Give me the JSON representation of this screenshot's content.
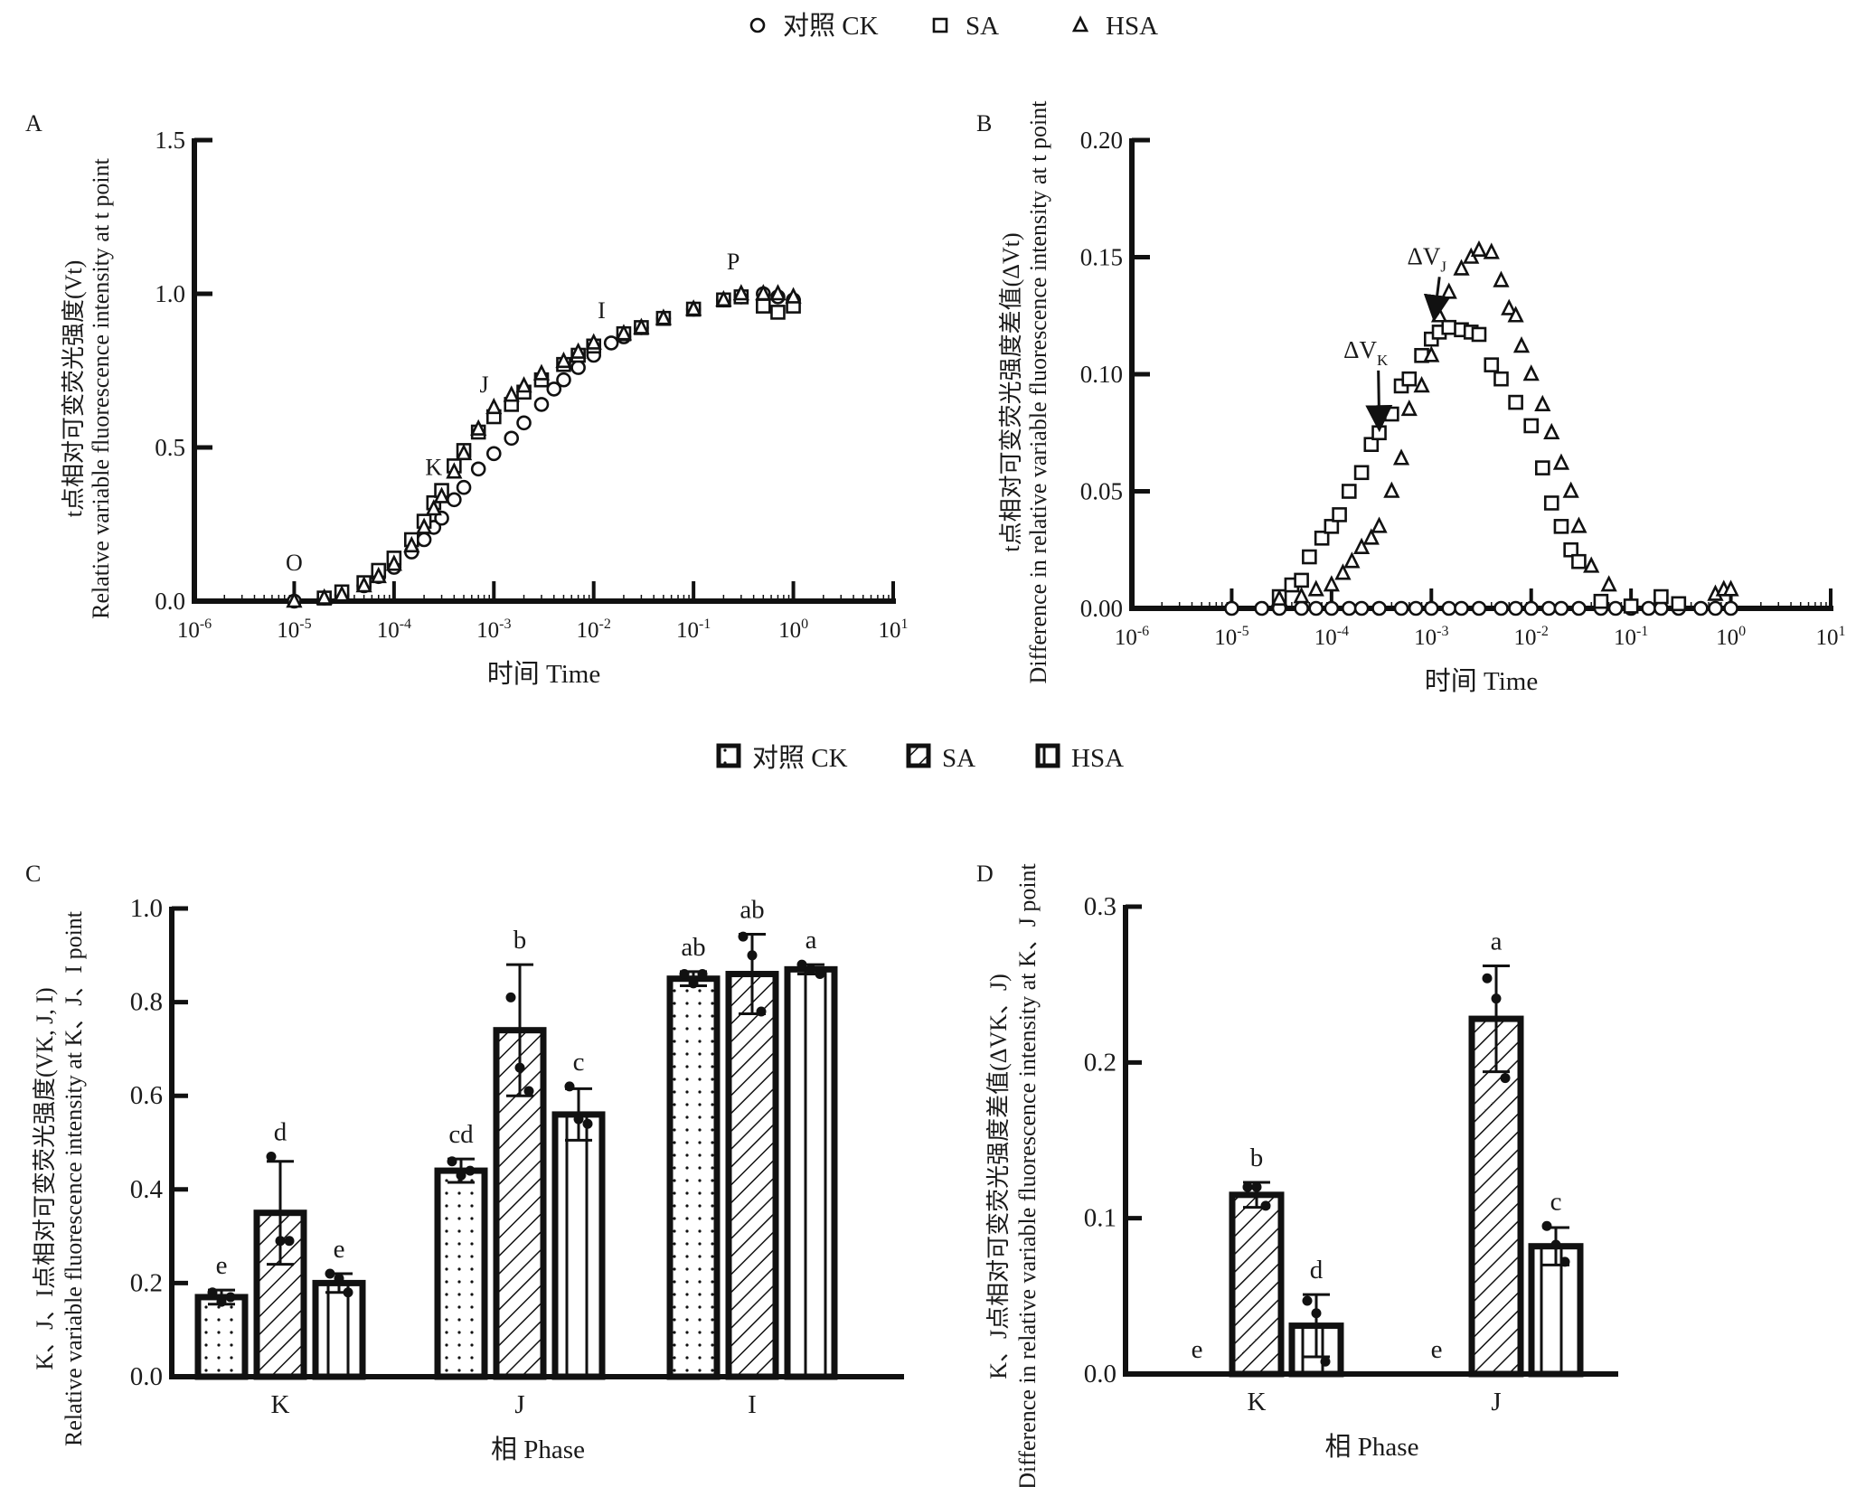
{
  "legend_scatter": [
    {
      "name": "对照 CK",
      "marker": "circle"
    },
    {
      "name": "SA",
      "marker": "square"
    },
    {
      "name": "HSA",
      "marker": "triangle"
    }
  ],
  "legend_bar": [
    {
      "name": "对照 CK",
      "pattern": "dots"
    },
    {
      "name": "SA",
      "pattern": "hatch"
    },
    {
      "name": "HSA",
      "pattern": "vlines"
    }
  ],
  "chart_data": [
    {
      "panel": "A",
      "type": "scatter",
      "title": "",
      "xlabel": "时间 Time",
      "ylabel_cn": "t点相对可变荧光强度(Vt)",
      "ylabel_en": "Relative variable fluorescence intensity at t point",
      "xscale": "log",
      "xlim": [
        1e-06,
        10
      ],
      "ylim": [
        0,
        1.5
      ],
      "xticks": [
        "10-6",
        "10-5",
        "10-4",
        "10-3",
        "10-2",
        "10-1",
        "100",
        "101"
      ],
      "yticks": [
        "0.0",
        "0.5",
        "1.0",
        "1.5"
      ],
      "annotations": [
        {
          "text": "O",
          "x": 1e-05,
          "y": 0.1
        },
        {
          "text": "K",
          "x": 0.00025,
          "y": 0.41
        },
        {
          "text": "J",
          "x": 0.0008,
          "y": 0.68
        },
        {
          "text": "I",
          "x": 0.012,
          "y": 0.92
        },
        {
          "text": "P",
          "x": 0.25,
          "y": 1.08
        }
      ],
      "series": [
        {
          "name": "对照 CK",
          "marker": "circle",
          "x": [
            1e-05,
            2e-05,
            3e-05,
            5e-05,
            7e-05,
            0.0001,
            0.00015,
            0.0002,
            0.00025,
            0.0003,
            0.0004,
            0.0005,
            0.0007,
            0.001,
            0.0015,
            0.002,
            0.003,
            0.004,
            0.005,
            0.007,
            0.01,
            0.015,
            0.02,
            0.03,
            0.05,
            0.1,
            0.2,
            0.3,
            0.5,
            0.7,
            1.0
          ],
          "y": [
            0.0,
            0.01,
            0.02,
            0.05,
            0.08,
            0.11,
            0.16,
            0.2,
            0.24,
            0.27,
            0.33,
            0.37,
            0.43,
            0.48,
            0.53,
            0.58,
            0.64,
            0.69,
            0.72,
            0.76,
            0.8,
            0.84,
            0.86,
            0.89,
            0.92,
            0.95,
            0.98,
            0.99,
            1.0,
            0.99,
            0.98
          ]
        },
        {
          "name": "SA",
          "marker": "square",
          "x": [
            2e-05,
            3e-05,
            5e-05,
            7e-05,
            0.0001,
            0.00015,
            0.0002,
            0.00025,
            0.0003,
            0.0004,
            0.0005,
            0.0007,
            0.001,
            0.0015,
            0.002,
            0.003,
            0.005,
            0.007,
            0.01,
            0.02,
            0.03,
            0.05,
            0.1,
            0.2,
            0.3,
            0.5,
            0.7,
            1.0
          ],
          "y": [
            0.01,
            0.03,
            0.06,
            0.1,
            0.14,
            0.2,
            0.26,
            0.32,
            0.36,
            0.44,
            0.49,
            0.55,
            0.6,
            0.64,
            0.68,
            0.72,
            0.77,
            0.8,
            0.83,
            0.87,
            0.89,
            0.92,
            0.95,
            0.98,
            0.99,
            0.96,
            0.94,
            0.96
          ]
        },
        {
          "name": "HSA",
          "marker": "triangle",
          "x": [
            1e-05,
            2e-05,
            3e-05,
            5e-05,
            7e-05,
            0.0001,
            0.00015,
            0.0002,
            0.00025,
            0.0003,
            0.0004,
            0.0005,
            0.0007,
            0.001,
            0.0015,
            0.002,
            0.003,
            0.005,
            0.007,
            0.01,
            0.02,
            0.03,
            0.05,
            0.1,
            0.2,
            0.3,
            0.5,
            0.7,
            1.0
          ],
          "y": [
            0.0,
            0.01,
            0.02,
            0.05,
            0.08,
            0.12,
            0.18,
            0.24,
            0.3,
            0.34,
            0.42,
            0.48,
            0.56,
            0.63,
            0.67,
            0.7,
            0.74,
            0.78,
            0.81,
            0.84,
            0.87,
            0.89,
            0.92,
            0.95,
            0.98,
            1.0,
            1.0,
            1.0,
            0.99
          ]
        }
      ]
    },
    {
      "panel": "B",
      "type": "scatter",
      "title": "",
      "xlabel": "时间 Time",
      "ylabel_cn": "t点相对可变荧光强度差值(ΔVt)",
      "ylabel_en": "Difference in relative variable fluorescence intensity at t point",
      "xscale": "log",
      "xlim": [
        1e-06,
        10
      ],
      "ylim": [
        0,
        0.2
      ],
      "xticks": [
        "10-6",
        "10-5",
        "10-4",
        "10-3",
        "10-2",
        "10-1",
        "100",
        "101"
      ],
      "yticks": [
        "0.00",
        "0.05",
        "0.10",
        "0.15",
        "0.20"
      ],
      "annotations": [
        {
          "text": "ΔVK",
          "x": 0.00022,
          "y": 0.107,
          "arrow_to": [
            0.0003,
            0.081
          ]
        },
        {
          "text": "ΔVJ",
          "x": 0.0009,
          "y": 0.147,
          "arrow_to": [
            0.0011,
            0.128
          ]
        }
      ],
      "series": [
        {
          "name": "对照 CK",
          "marker": "circle",
          "x": [
            1e-05,
            2e-05,
            3e-05,
            5e-05,
            7e-05,
            0.0001,
            0.00015,
            0.0002,
            0.0003,
            0.0005,
            0.0007,
            0.001,
            0.0015,
            0.002,
            0.003,
            0.005,
            0.007,
            0.01,
            0.015,
            0.02,
            0.03,
            0.05,
            0.07,
            0.1,
            0.15,
            0.2,
            0.3,
            0.5,
            0.7,
            1.0
          ],
          "y": [
            0,
            0,
            0,
            0,
            0,
            0,
            0,
            0,
            0,
            0,
            0,
            0,
            0,
            0,
            0,
            0,
            0,
            0,
            0,
            0,
            0,
            0,
            0,
            0,
            0,
            0,
            0,
            0,
            0,
            0
          ]
        },
        {
          "name": "SA",
          "marker": "square",
          "x": [
            3e-05,
            4e-05,
            5e-05,
            6e-05,
            8e-05,
            0.0001,
            0.00012,
            0.00015,
            0.0002,
            0.00025,
            0.0003,
            0.0004,
            0.0005,
            0.0006,
            0.0008,
            0.001,
            0.0012,
            0.0015,
            0.002,
            0.0025,
            0.003,
            0.004,
            0.005,
            0.007,
            0.01,
            0.013,
            0.016,
            0.02,
            0.025,
            0.03,
            0.05,
            0.1,
            0.2,
            0.3
          ],
          "y": [
            0.005,
            0.01,
            0.012,
            0.022,
            0.03,
            0.035,
            0.04,
            0.05,
            0.058,
            0.07,
            0.075,
            0.083,
            0.095,
            0.098,
            0.108,
            0.115,
            0.118,
            0.12,
            0.119,
            0.118,
            0.117,
            0.104,
            0.098,
            0.088,
            0.078,
            0.06,
            0.045,
            0.035,
            0.025,
            0.02,
            0.003,
            0.001,
            0.005,
            0.002
          ]
        },
        {
          "name": "HSA",
          "marker": "triangle",
          "x": [
            3e-05,
            5e-05,
            7e-05,
            0.0001,
            0.00013,
            0.00016,
            0.0002,
            0.00025,
            0.0003,
            0.0004,
            0.0005,
            0.0006,
            0.0008,
            0.001,
            0.0012,
            0.0015,
            0.002,
            0.0025,
            0.003,
            0.004,
            0.005,
            0.006,
            0.007,
            0.008,
            0.01,
            0.013,
            0.016,
            0.02,
            0.025,
            0.03,
            0.04,
            0.06,
            0.7,
            0.85,
            1.0
          ],
          "y": [
            0.004,
            0.005,
            0.008,
            0.01,
            0.015,
            0.02,
            0.026,
            0.03,
            0.035,
            0.05,
            0.064,
            0.085,
            0.095,
            0.108,
            0.125,
            0.135,
            0.145,
            0.15,
            0.153,
            0.152,
            0.14,
            0.128,
            0.125,
            0.112,
            0.1,
            0.087,
            0.075,
            0.062,
            0.05,
            0.035,
            0.018,
            0.01,
            0.006,
            0.008,
            0.008
          ]
        }
      ]
    },
    {
      "panel": "C",
      "type": "bar",
      "title": "",
      "xlabel": "相 Phase",
      "ylabel_cn": "K、J、I点相对可变荧光强度(VK, J, I)",
      "ylabel_en": "Relative variable fluorescence intensity at K、J、I point",
      "ylim": [
        0,
        1.0
      ],
      "yticks": [
        "0.0",
        "0.2",
        "0.4",
        "0.6",
        "0.8",
        "1.0"
      ],
      "categories": [
        "K",
        "J",
        "I"
      ],
      "series": [
        {
          "name": "对照 CK",
          "pattern": "dots",
          "values": [
            0.17,
            0.44,
            0.85
          ],
          "err": [
            0.015,
            0.025,
            0.015
          ],
          "letters": [
            "e",
            "cd",
            "ab"
          ],
          "points": [
            [
              0.18,
              0.16,
              0.17
            ],
            [
              0.46,
              0.43,
              0.44
            ],
            [
              0.86,
              0.84,
              0.86
            ]
          ]
        },
        {
          "name": "SA",
          "pattern": "hatch",
          "values": [
            0.35,
            0.74,
            0.86
          ],
          "err": [
            0.11,
            0.14,
            0.085
          ],
          "letters": [
            "d",
            "b",
            "ab"
          ],
          "points": [
            [
              0.47,
              0.29,
              0.29
            ],
            [
              0.81,
              0.66,
              0.61
            ],
            [
              0.94,
              0.9,
              0.78
            ]
          ]
        },
        {
          "name": "HSA",
          "pattern": "vlines",
          "values": [
            0.2,
            0.56,
            0.87
          ],
          "err": [
            0.02,
            0.055,
            0.01
          ],
          "letters": [
            "e",
            "c",
            "a"
          ],
          "points": [
            [
              0.22,
              0.21,
              0.18
            ],
            [
              0.62,
              0.55,
              0.54
            ],
            [
              0.88,
              0.87,
              0.86
            ]
          ]
        }
      ]
    },
    {
      "panel": "D",
      "type": "bar",
      "title": "",
      "xlabel": "相 Phase",
      "ylabel_cn": "K、J点相对可变荧光强度差值(ΔVK、J)",
      "ylabel_en": "Difference in relative variable fluorescence intensity at K、J point",
      "ylim": [
        0,
        0.3
      ],
      "yticks": [
        "0.0",
        "0.1",
        "0.2",
        "0.3"
      ],
      "categories": [
        "K",
        "J"
      ],
      "series": [
        {
          "name": "对照 CK",
          "pattern": "dots",
          "values": [
            0.0,
            0.0
          ],
          "err": [
            0,
            0
          ],
          "letters": [
            "e",
            "e"
          ],
          "points": [
            [
              0,
              0,
              0
            ],
            [
              0,
              0,
              0
            ]
          ]
        },
        {
          "name": "SA",
          "pattern": "hatch",
          "values": [
            0.115,
            0.228
          ],
          "err": [
            0.008,
            0.034
          ],
          "letters": [
            "b",
            "a"
          ],
          "points": [
            [
              0.12,
              0.12,
              0.108
            ],
            [
              0.254,
              0.241,
              0.19
            ]
          ]
        },
        {
          "name": "HSA",
          "pattern": "vlines",
          "values": [
            0.031,
            0.082
          ],
          "err": [
            0.02,
            0.012
          ],
          "letters": [
            "d",
            "c"
          ],
          "points": [
            [
              0.047,
              0.039,
              0.008
            ],
            [
              0.095,
              0.083,
              0.072
            ]
          ]
        }
      ]
    }
  ],
  "panel_labels": [
    "A",
    "B",
    "C",
    "D"
  ]
}
